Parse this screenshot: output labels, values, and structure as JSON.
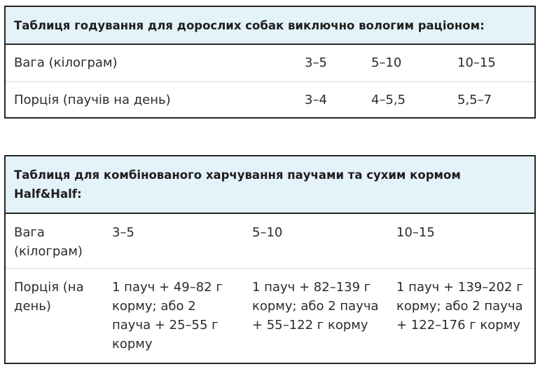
{
  "tables": [
    {
      "title": "Таблиця годування для дорослих собак виключно вологим раціоном:",
      "rows": [
        [
          "Вага (кілограм)",
          "3–5",
          "5–10",
          "10–15"
        ],
        [
          "Порція (паучів на день)",
          "3–4",
          "4–5,5",
          "5,5–7"
        ]
      ]
    },
    {
      "title": "Таблиця для комбінованого харчування паучами та сухим кормом Half&Half:",
      "rows": [
        [
          "Вага (кілограм)",
          "3–5",
          "5–10",
          "10–15"
        ],
        [
          "Порція (на день)",
          "1 пауч + 49–82 г корму; або 2 пауча + 25–55 г корму",
          "1 пауч + 82–139 г корму; або 2 пауча + 55–122 г корму",
          "1 пауч + 139–202 г корму; або 2 пауча + 122–176 г корму"
        ]
      ]
    }
  ]
}
